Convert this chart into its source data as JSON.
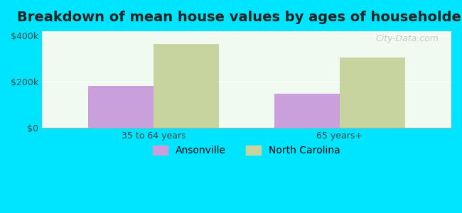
{
  "title": "Breakdown of mean house values by ages of householders",
  "categories": [
    "35 to 64 years",
    "65 years+"
  ],
  "series": {
    "Ansonville": [
      182000,
      148000
    ],
    "North Carolina": [
      365000,
      305000
    ]
  },
  "bar_colors": {
    "Ansonville": "#c9a0dc",
    "North Carolina": "#c8d4a0"
  },
  "ylim": [
    0,
    420000
  ],
  "yticks": [
    0,
    200000,
    400000
  ],
  "ytick_labels": [
    "$0",
    "$200k",
    "$400k"
  ],
  "background_color": "#00e5ff",
  "plot_bg_color": "#f0faf0",
  "title_fontsize": 14,
  "tick_fontsize": 9,
  "legend_fontsize": 10,
  "bar_width": 0.35,
  "watermark": "City-Data.com"
}
